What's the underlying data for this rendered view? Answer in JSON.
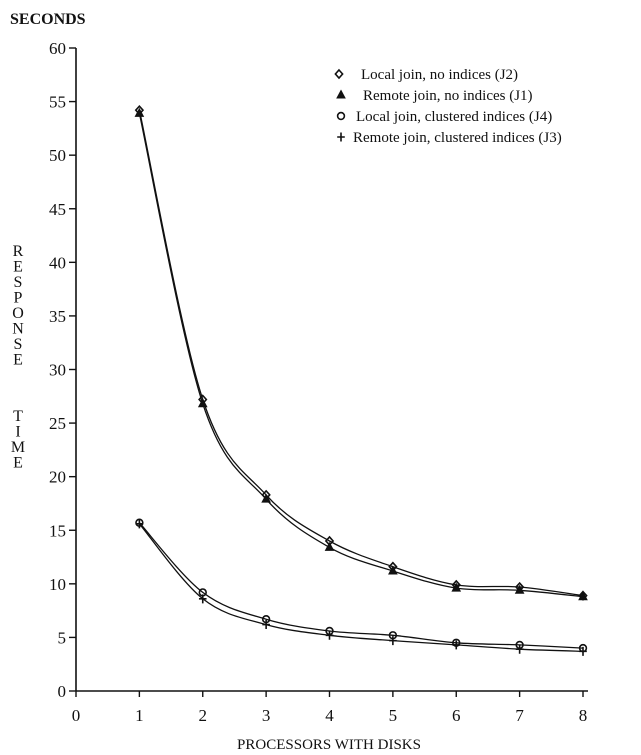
{
  "chart_data": {
    "type": "line",
    "x_axis_label": "PROCESSORS WITH DISKS",
    "y_axis_label": "RESPONSE TIME",
    "y_unit_label": "SECONDS",
    "x": [
      1,
      2,
      3,
      4,
      5,
      6,
      7,
      8
    ],
    "xlim": [
      0,
      8
    ],
    "ylim": [
      0,
      60
    ],
    "x_ticks": [
      0,
      1,
      2,
      3,
      4,
      5,
      6,
      7,
      8
    ],
    "y_ticks": [
      0,
      5,
      10,
      15,
      20,
      25,
      30,
      35,
      40,
      45,
      50,
      55,
      60
    ],
    "grid": false,
    "legend_position": "top-right",
    "series": [
      {
        "name": "Local join, no indices (J2)",
        "marker": "diamond",
        "values": [
          54.2,
          27.2,
          18.3,
          14.0,
          11.6,
          9.9,
          9.7,
          8.9
        ]
      },
      {
        "name": "Remote join, no indices (J1)",
        "marker": "triangle",
        "values": [
          53.9,
          26.8,
          17.9,
          13.4,
          11.2,
          9.6,
          9.4,
          8.8
        ]
      },
      {
        "name": "Local join, clustered indices (J4)",
        "marker": "circle",
        "values": [
          15.7,
          9.2,
          6.7,
          5.6,
          5.2,
          4.5,
          4.3,
          4.0
        ]
      },
      {
        "name": "Remote join, clustered indices (J3)",
        "marker": "plus",
        "values": [
          15.6,
          8.6,
          6.2,
          5.2,
          4.7,
          4.3,
          3.9,
          3.7
        ]
      }
    ]
  }
}
